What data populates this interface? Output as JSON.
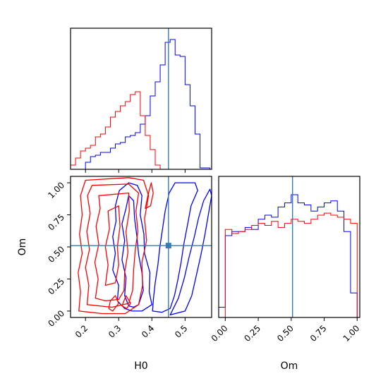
{
  "chart_data": {
    "type": "corner",
    "parameters": [
      "H0",
      "Om"
    ],
    "truth": {
      "H0": 0.45,
      "Om": 0.51
    },
    "colors": {
      "series_a": "#0000ff",
      "series_b": "#ff0000",
      "truth": "#3a7bb3"
    },
    "panels": {
      "h0_hist": {
        "type": "step-histogram",
        "xlim": [
          0.155,
          0.58
        ],
        "xticks": [
          0.2,
          0.3,
          0.4,
          0.5
        ],
        "series": [
          {
            "color": "#0000ff",
            "bins": [
              0.2,
              0.215,
              0.23,
              0.245,
              0.26,
              0.275,
              0.29,
              0.305,
              0.32,
              0.335,
              0.35,
              0.365,
              0.38,
              0.395,
              0.41,
              0.425,
              0.44,
              0.455,
              0.47,
              0.485,
              0.5,
              0.515,
              0.53,
              0.545,
              0.56,
              0.575
            ],
            "values": [
              0.05,
              0.09,
              0.1,
              0.12,
              0.12,
              0.15,
              0.18,
              0.19,
              0.23,
              0.24,
              0.26,
              0.32,
              0.38,
              0.52,
              0.62,
              0.74,
              0.9,
              0.92,
              0.81,
              0.8,
              0.6,
              0.45,
              0.25,
              0.01,
              0.01
            ]
          },
          {
            "color": "#ff0000",
            "bins": [
              0.155,
              0.17,
              0.185,
              0.2,
              0.215,
              0.23,
              0.245,
              0.26,
              0.275,
              0.29,
              0.305,
              0.32,
              0.335,
              0.35,
              0.365,
              0.38,
              0.395,
              0.41,
              0.425
            ],
            "values": [
              0.03,
              0.08,
              0.13,
              0.15,
              0.17,
              0.23,
              0.25,
              0.3,
              0.37,
              0.41,
              0.45,
              0.48,
              0.53,
              0.55,
              0.38,
              0.24,
              0.14,
              0.03
            ]
          }
        ]
      },
      "om_hist": {
        "type": "step-histogram",
        "xlim": [
          -0.05,
          1.02
        ],
        "xticks": [
          0.0,
          0.25,
          0.5,
          0.75,
          1.0
        ],
        "xticklabels": [
          "0.00",
          "0.25",
          "0.50",
          "0.75",
          "1.00"
        ],
        "series": [
          {
            "color": "#0000ff",
            "bins": [
              -0.05,
              0.0,
              0.05,
              0.1,
              0.15,
              0.2,
              0.25,
              0.3,
              0.35,
              0.4,
              0.45,
              0.5,
              0.55,
              0.6,
              0.65,
              0.7,
              0.75,
              0.8,
              0.85,
              0.9,
              0.95,
              1.0
            ],
            "values": [
              0.05,
              0.4,
              0.42,
              0.42,
              0.44,
              0.43,
              0.48,
              0.5,
              0.49,
              0.54,
              0.56,
              0.6,
              0.56,
              0.55,
              0.52,
              0.54,
              0.56,
              0.57,
              0.52,
              0.42,
              0.12
            ]
          },
          {
            "color": "#ff0000",
            "bins": [
              0.0,
              0.05,
              0.1,
              0.15,
              0.2,
              0.25,
              0.3,
              0.35,
              0.4,
              0.45,
              0.5,
              0.55,
              0.6,
              0.65,
              0.7,
              0.75,
              0.8,
              0.85,
              0.9,
              0.95,
              1.0
            ],
            "values": [
              0.43,
              0.41,
              0.42,
              0.43,
              0.45,
              0.46,
              0.45,
              0.47,
              0.44,
              0.46,
              0.48,
              0.47,
              0.46,
              0.48,
              0.5,
              0.51,
              0.5,
              0.49,
              0.48,
              0.46
            ]
          }
        ]
      },
      "joint": {
        "type": "contour",
        "xlim": [
          0.155,
          0.58
        ],
        "ylim": [
          -0.05,
          1.05
        ],
        "xlabel": "H0",
        "ylabel": "Om",
        "xticks": [
          0.2,
          0.3,
          0.4,
          0.5
        ],
        "yticks": [
          0.0,
          0.25,
          0.5,
          0.75,
          1.0
        ],
        "yticklabels": [
          "0.00",
          "0.25",
          "0.50",
          "0.75",
          "1.00"
        ],
        "contours": [
          {
            "color": "#0000ff",
            "points": [
              [
                0.318,
                0.02
              ],
              [
                0.296,
                0.08
              ],
              [
                0.3,
                0.2
              ],
              [
                0.282,
                0.32
              ],
              [
                0.29,
                0.45
              ],
              [
                0.282,
                0.58
              ],
              [
                0.292,
                0.7
              ],
              [
                0.29,
                0.82
              ],
              [
                0.302,
                0.94
              ],
              [
                0.33,
                1.0
              ],
              [
                0.356,
                0.98
              ],
              [
                0.37,
                0.9
              ],
              [
                0.365,
                0.75
              ],
              [
                0.376,
                0.6
              ],
              [
                0.378,
                0.45
              ],
              [
                0.394,
                0.3
              ],
              [
                0.392,
                0.15
              ],
              [
                0.4,
                0.05
              ],
              [
                0.37,
                0.0
              ],
              [
                0.34,
                0.0
              ]
            ]
          },
          {
            "color": "#0000ff",
            "points": [
              [
                0.33,
                0.04
              ],
              [
                0.318,
                0.12
              ],
              [
                0.322,
                0.26
              ],
              [
                0.31,
                0.4
              ],
              [
                0.318,
                0.55
              ],
              [
                0.31,
                0.68
              ],
              [
                0.322,
                0.8
              ],
              [
                0.33,
                0.9
              ],
              [
                0.345,
                0.86
              ],
              [
                0.348,
                0.72
              ],
              [
                0.355,
                0.58
              ],
              [
                0.36,
                0.44
              ],
              [
                0.37,
                0.3
              ],
              [
                0.374,
                0.16
              ],
              [
                0.36,
                0.05
              ],
              [
                0.345,
                0.03
              ]
            ]
          },
          {
            "color": "#0000ff",
            "points": [
              [
                0.402,
                0.0
              ],
              [
                0.405,
                0.1
              ],
              [
                0.41,
                0.22
              ],
              [
                0.418,
                0.36
              ],
              [
                0.424,
                0.5
              ],
              [
                0.432,
                0.64
              ],
              [
                0.44,
                0.78
              ],
              [
                0.452,
                0.92
              ],
              [
                0.47,
                1.0
              ],
              [
                0.53,
                1.0
              ],
              [
                0.538,
                0.94
              ],
              [
                0.518,
                0.82
              ],
              [
                0.508,
                0.68
              ],
              [
                0.496,
                0.52
              ],
              [
                0.488,
                0.38
              ],
              [
                0.478,
                0.24
              ],
              [
                0.468,
                0.12
              ],
              [
                0.455,
                0.02
              ],
              [
                0.43,
                -0.01
              ]
            ]
          },
          {
            "color": "#0000ff",
            "points": [
              [
                0.455,
                -0.03
              ],
              [
                0.48,
                0.1
              ],
              [
                0.498,
                0.26
              ],
              [
                0.512,
                0.42
              ],
              [
                0.528,
                0.58
              ],
              [
                0.54,
                0.72
              ],
              [
                0.556,
                0.86
              ],
              [
                0.575,
                0.95
              ],
              [
                0.58,
                0.9
              ],
              [
                0.57,
                0.75
              ],
              [
                0.56,
                0.6
              ],
              [
                0.548,
                0.44
              ],
              [
                0.534,
                0.28
              ],
              [
                0.52,
                0.12
              ],
              [
                0.5,
                0.0
              ]
            ]
          },
          {
            "color": "#ff0000",
            "points": [
              [
                0.18,
                0.0
              ],
              [
                0.185,
                0.15
              ],
              [
                0.178,
                0.3
              ],
              [
                0.19,
                0.45
              ],
              [
                0.182,
                0.6
              ],
              [
                0.19,
                0.75
              ],
              [
                0.185,
                0.9
              ],
              [
                0.2,
                1.02
              ],
              [
                0.33,
                1.04
              ],
              [
                0.375,
                1.02
              ],
              [
                0.39,
                0.9
              ],
              [
                0.378,
                0.72
              ],
              [
                0.384,
                0.55
              ],
              [
                0.37,
                0.38
              ],
              [
                0.372,
                0.2
              ],
              [
                0.36,
                0.05
              ],
              [
                0.32,
                -0.02
              ],
              [
                0.25,
                -0.02
              ]
            ]
          },
          {
            "color": "#ff0000",
            "points": [
              [
                0.205,
                0.05
              ],
              [
                0.21,
                0.2
              ],
              [
                0.2,
                0.34
              ],
              [
                0.212,
                0.48
              ],
              [
                0.204,
                0.62
              ],
              [
                0.214,
                0.76
              ],
              [
                0.206,
                0.9
              ],
              [
                0.22,
                0.98
              ],
              [
                0.33,
                0.99
              ],
              [
                0.36,
                0.92
              ],
              [
                0.352,
                0.78
              ],
              [
                0.358,
                0.62
              ],
              [
                0.35,
                0.48
              ],
              [
                0.345,
                0.32
              ],
              [
                0.342,
                0.16
              ],
              [
                0.33,
                0.06
              ],
              [
                0.28,
                0.03
              ]
            ]
          },
          {
            "color": "#ff0000",
            "points": [
              [
                0.23,
                0.1
              ],
              [
                0.238,
                0.25
              ],
              [
                0.228,
                0.38
              ],
              [
                0.24,
                0.52
              ],
              [
                0.232,
                0.66
              ],
              [
                0.244,
                0.8
              ],
              [
                0.24,
                0.9
              ],
              [
                0.33,
                0.92
              ],
              [
                0.332,
                0.78
              ],
              [
                0.322,
                0.62
              ],
              [
                0.328,
                0.46
              ],
              [
                0.318,
                0.3
              ],
              [
                0.316,
                0.16
              ],
              [
                0.3,
                0.09
              ],
              [
                0.26,
                0.08
              ]
            ]
          },
          {
            "color": "#ff0000",
            "points": [
              [
                0.26,
                0.2
              ],
              [
                0.268,
                0.36
              ],
              [
                0.26,
                0.5
              ],
              [
                0.272,
                0.64
              ],
              [
                0.268,
                0.78
              ],
              [
                0.3,
                0.82
              ],
              [
                0.304,
                0.66
              ],
              [
                0.296,
                0.5
              ],
              [
                0.3,
                0.36
              ],
              [
                0.29,
                0.22
              ]
            ]
          },
          {
            "color": "#ff0000",
            "points": [
              [
                0.27,
                0.02
              ],
              [
                0.282,
                0.0
              ],
              [
                0.3,
                0.06
              ],
              [
                0.29,
                0.12
              ],
              [
                0.275,
                0.08
              ]
            ]
          },
          {
            "color": "#ff0000",
            "points": [
              [
                0.38,
                0.8
              ],
              [
                0.388,
                0.9
              ],
              [
                0.398,
                1.0
              ],
              [
                0.404,
                0.92
              ],
              [
                0.396,
                0.82
              ]
            ]
          },
          {
            "color": "#ff0000",
            "points": [
              [
                0.31,
                0.04
              ],
              [
                0.322,
                0.12
              ],
              [
                0.336,
                0.06
              ],
              [
                0.324,
                0.02
              ]
            ]
          }
        ]
      }
    }
  }
}
